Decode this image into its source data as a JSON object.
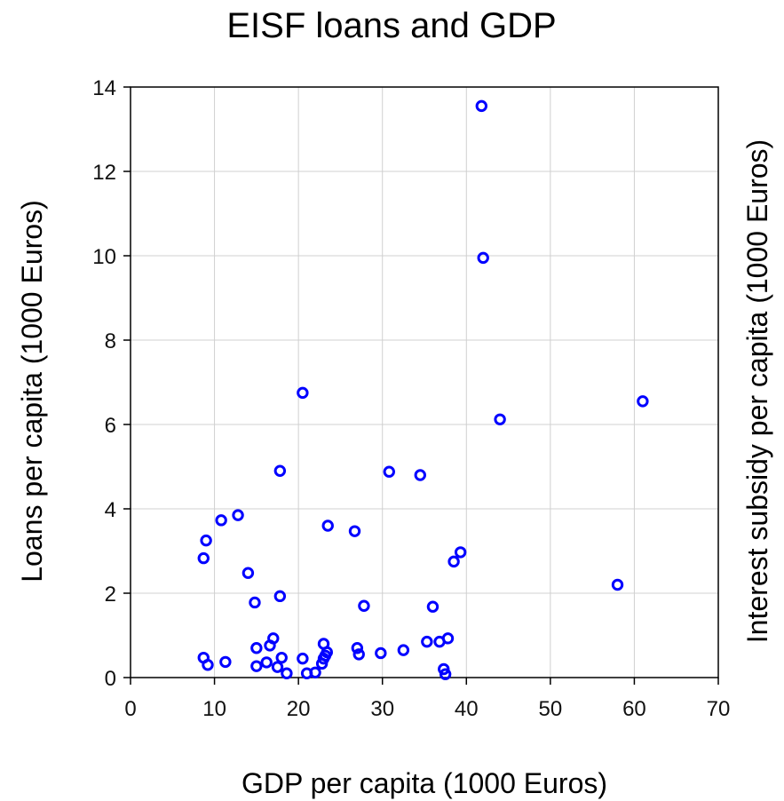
{
  "chart_data": {
    "type": "scatter",
    "title": "EISF loans and GDP",
    "xlabel": "GDP per capita (1000 Euros)",
    "ylabel": "Loans per capita (1000 Euros)",
    "ylabel_right": "Interest subsidy per capita (1000 Euros)",
    "xlim": [
      0,
      70
    ],
    "ylim": [
      0,
      14
    ],
    "xticks": [
      0,
      10,
      20,
      30,
      40,
      50,
      60,
      70
    ],
    "yticks": [
      0,
      2,
      4,
      6,
      8,
      10,
      12,
      14
    ],
    "grid": true,
    "marker": "hollow-circle",
    "series": [
      {
        "color": "#0000ff",
        "points": [
          [
            41.8,
            13.55
          ],
          [
            42.0,
            9.95
          ],
          [
            20.5,
            6.75
          ],
          [
            61.0,
            6.55
          ],
          [
            44.0,
            6.12
          ],
          [
            17.8,
            4.9
          ],
          [
            30.8,
            4.88
          ],
          [
            34.5,
            4.8
          ],
          [
            12.8,
            3.85
          ],
          [
            10.8,
            3.73
          ],
          [
            23.5,
            3.6
          ],
          [
            26.7,
            3.47
          ],
          [
            9.0,
            3.25
          ],
          [
            39.3,
            2.97
          ],
          [
            8.7,
            2.83
          ],
          [
            38.5,
            2.75
          ],
          [
            14.0,
            2.48
          ],
          [
            58.0,
            2.2
          ],
          [
            17.8,
            1.93
          ],
          [
            14.8,
            1.78
          ],
          [
            27.8,
            1.7
          ],
          [
            36.0,
            1.68
          ],
          [
            17.0,
            0.93
          ],
          [
            37.8,
            0.93
          ],
          [
            35.3,
            0.85
          ],
          [
            36.8,
            0.85
          ],
          [
            23.0,
            0.8
          ],
          [
            16.6,
            0.76
          ],
          [
            15.0,
            0.7
          ],
          [
            27.0,
            0.7
          ],
          [
            32.5,
            0.65
          ],
          [
            23.4,
            0.6
          ],
          [
            29.8,
            0.58
          ],
          [
            27.2,
            0.55
          ],
          [
            23.2,
            0.52
          ],
          [
            8.7,
            0.47
          ],
          [
            18.0,
            0.47
          ],
          [
            20.5,
            0.45
          ],
          [
            23.0,
            0.45
          ],
          [
            11.3,
            0.37
          ],
          [
            16.2,
            0.36
          ],
          [
            22.8,
            0.33
          ],
          [
            9.2,
            0.3
          ],
          [
            15.0,
            0.27
          ],
          [
            17.5,
            0.25
          ],
          [
            37.3,
            0.2
          ],
          [
            22.0,
            0.12
          ],
          [
            18.6,
            0.1
          ],
          [
            21.0,
            0.1
          ],
          [
            37.5,
            0.08
          ]
        ]
      }
    ]
  }
}
